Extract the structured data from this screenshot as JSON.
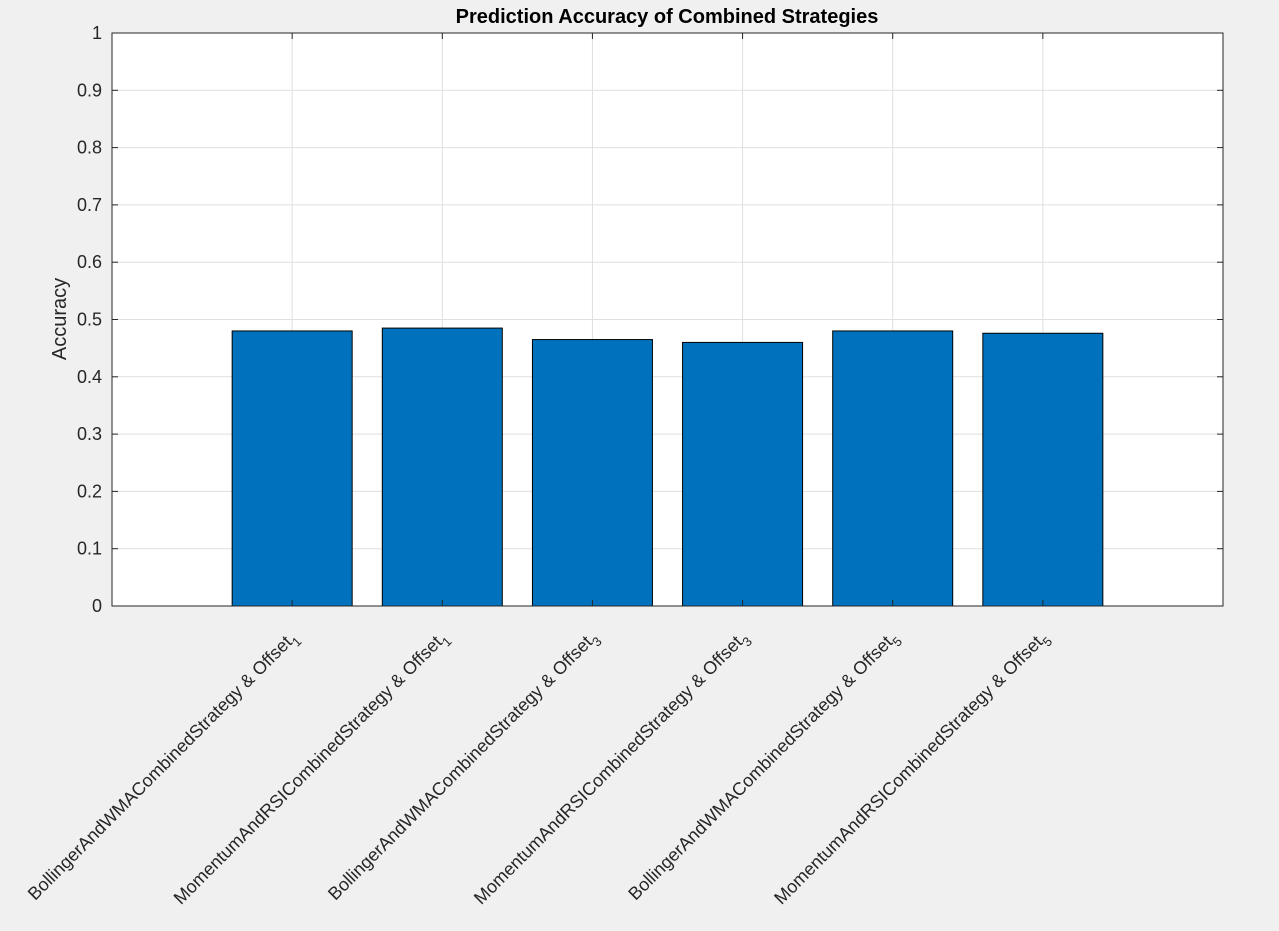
{
  "chart_data": {
    "type": "bar",
    "title": "Prediction Accuracy of Combined Strategies",
    "xlabel": "",
    "ylabel": "Accuracy",
    "ylim": [
      0,
      1
    ],
    "yticks": [
      "0",
      "0.1",
      "0.2",
      "0.3",
      "0.4",
      "0.5",
      "0.6",
      "0.7",
      "0.8",
      "0.9",
      "1"
    ],
    "grid": true,
    "categories": [
      {
        "label": "BollingerAndWMACombinedStrategy & Offset",
        "subscript": "1"
      },
      {
        "label": "MomentumAndRSICombinedStrategy & Offset",
        "subscript": "1"
      },
      {
        "label": "BollingerAndWMACombinedStrategy & Offset",
        "subscript": "3"
      },
      {
        "label": "MomentumAndRSICombinedStrategy & Offset",
        "subscript": "3"
      },
      {
        "label": "BollingerAndWMACombinedStrategy & Offset",
        "subscript": "5"
      },
      {
        "label": "MomentumAndRSICombinedStrategy & Offset",
        "subscript": "5"
      }
    ],
    "values": [
      0.48,
      0.485,
      0.465,
      0.46,
      0.48,
      0.476
    ],
    "colors": {
      "bar": "#0072bd",
      "bar_edge": "#000000",
      "axes_bg": "#ffffff",
      "figure_bg": "#f0f0f0",
      "grid": "#dfdfdf",
      "axis": "#262626"
    }
  }
}
